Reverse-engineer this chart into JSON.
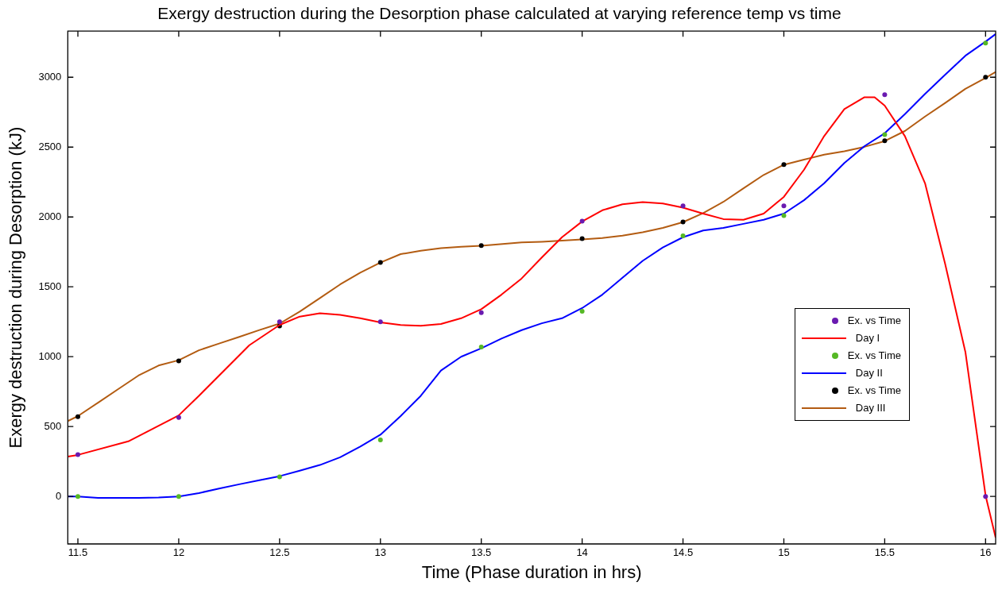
{
  "chart_data": {
    "type": "line",
    "title": "Exergy destruction during the Desorption phase calculated at varying reference temp vs time",
    "xlabel": "Time (Phase duration in hrs)",
    "ylabel": "Exergy destruction during Desorption (kJ)",
    "xlim": [
      11.45,
      16.05
    ],
    "xticks": [
      11.5,
      12,
      12.5,
      13,
      13.5,
      14,
      14.5,
      15,
      15.5,
      16
    ],
    "ylim": [
      -340,
      3330
    ],
    "yticks": [
      0,
      500,
      1000,
      1500,
      2000,
      2500,
      3000
    ],
    "grid": false,
    "legend": "right",
    "line_style": "solid",
    "series": [
      {
        "type": "scatter",
        "marker": "circle",
        "name": "Ex. vs Time",
        "color": "#6a1ab0",
        "x": [
          11.5,
          12,
          12.5,
          13,
          13.5,
          14,
          14.5,
          15,
          15.5,
          16
        ],
        "values": [
          300,
          565,
          1250,
          1250,
          1315,
          1970,
          2080,
          2080,
          2875,
          0
        ]
      },
      {
        "name": "Day I",
        "color": "#ff0000",
        "x": [
          11.45,
          11.5,
          11.75,
          12,
          12.1,
          12.35,
          12.5,
          12.6,
          12.7,
          12.8,
          12.9,
          13,
          13.1,
          13.2,
          13.3,
          13.4,
          13.5,
          13.6,
          13.7,
          13.8,
          13.9,
          14,
          14.1,
          14.2,
          14.3,
          14.4,
          14.5,
          14.6,
          14.7,
          14.8,
          14.9,
          15,
          15.1,
          15.2,
          15.3,
          15.4,
          15.45,
          15.5,
          15.6,
          15.7,
          15.8,
          15.9,
          16,
          16.05
        ],
        "values": [
          285,
          297,
          394,
          580,
          720,
          1082,
          1227,
          1287,
          1311,
          1299,
          1275,
          1246,
          1227,
          1222,
          1234,
          1275,
          1340,
          1444,
          1560,
          1710,
          1855,
          1968,
          2048,
          2091,
          2106,
          2096,
          2067,
          2024,
          1985,
          1980,
          2024,
          2144,
          2338,
          2579,
          2772,
          2857,
          2857,
          2797,
          2579,
          2241,
          1662,
          1034,
          7,
          -295
        ]
      },
      {
        "type": "scatter",
        "marker": "circle",
        "name": "Ex. vs Time",
        "color": "#55b825",
        "x": [
          11.5,
          12,
          12.5,
          13,
          13.5,
          14,
          14.5,
          15,
          15.5,
          16
        ],
        "values": [
          0,
          0,
          140,
          405,
          1070,
          1325,
          1865,
          2010,
          2590,
          3245
        ]
      },
      {
        "name": "Day II",
        "color": "#0000ff",
        "x": [
          11.45,
          11.5,
          11.6,
          11.7,
          11.8,
          11.9,
          12,
          12.1,
          12.2,
          12.3,
          12.4,
          12.5,
          12.6,
          12.7,
          12.8,
          12.9,
          13,
          13.1,
          13.2,
          13.3,
          13.4,
          13.5,
          13.6,
          13.7,
          13.8,
          13.9,
          14,
          14.1,
          14.2,
          14.3,
          14.4,
          14.5,
          14.6,
          14.7,
          14.8,
          14.9,
          15,
          15.1,
          15.2,
          15.3,
          15.4,
          15.5,
          15.6,
          15.7,
          15.8,
          15.9,
          16,
          16.05
        ],
        "values": [
          0,
          0,
          -10,
          -10,
          -10,
          -7,
          0,
          24,
          56,
          87,
          116,
          145,
          184,
          225,
          280,
          357,
          442,
          575,
          720,
          901,
          1000,
          1060,
          1130,
          1190,
          1239,
          1275,
          1348,
          1444,
          1565,
          1686,
          1782,
          1855,
          1903,
          1922,
          1951,
          1980,
          2024,
          2120,
          2241,
          2386,
          2507,
          2599,
          2736,
          2881,
          3019,
          3154,
          3255,
          3309
        ]
      },
      {
        "type": "scatter",
        "marker": "circle",
        "name": "Ex. vs Time",
        "color": "#000000",
        "x": [
          11.5,
          12,
          12.5,
          13,
          13.5,
          14,
          14.5,
          15,
          15.5,
          16
        ],
        "values": [
          570,
          970,
          1220,
          1675,
          1795,
          1845,
          1965,
          2375,
          2545,
          3000
        ]
      },
      {
        "name": "Day III",
        "color": "#b35c12",
        "x": [
          11.45,
          11.5,
          11.6,
          11.7,
          11.8,
          11.9,
          12,
          12.1,
          12.2,
          12.3,
          12.4,
          12.5,
          12.6,
          12.7,
          12.8,
          12.9,
          13,
          13.1,
          13.2,
          13.3,
          13.4,
          13.5,
          13.7,
          13.8,
          13.9,
          14,
          14.1,
          14.2,
          14.3,
          14.4,
          14.5,
          14.6,
          14.7,
          14.8,
          14.9,
          15,
          15.1,
          15.2,
          15.3,
          15.4,
          15.5,
          15.6,
          15.7,
          15.8,
          15.9,
          16,
          16.05
        ],
        "values": [
          539,
          575,
          671,
          768,
          865,
          937,
          975,
          1046,
          1094,
          1142,
          1191,
          1237,
          1323,
          1420,
          1517,
          1601,
          1674,
          1734,
          1758,
          1777,
          1787,
          1794,
          1818,
          1823,
          1831,
          1840,
          1850,
          1866,
          1891,
          1922,
          1963,
          2028,
          2108,
          2205,
          2301,
          2374,
          2410,
          2446,
          2470,
          2502,
          2543,
          2615,
          2719,
          2816,
          2917,
          2995,
          3038
        ]
      }
    ]
  }
}
